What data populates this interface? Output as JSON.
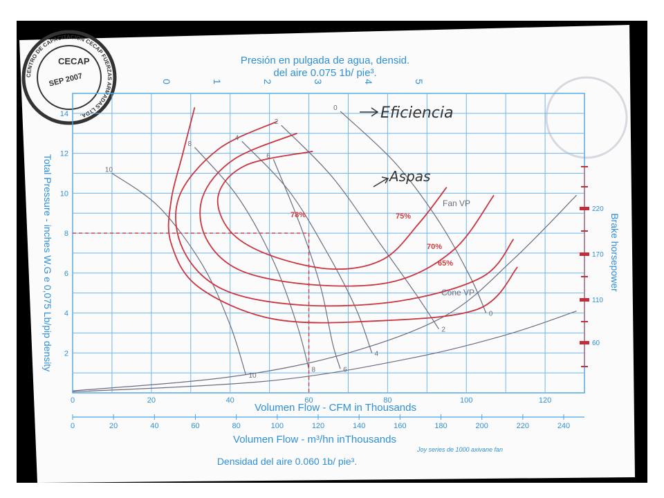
{
  "header": {
    "title_line1": "Presión en pulgada de agua, densid.",
    "title_line2": "del aire 0.075 1b/ pie³."
  },
  "stamp": {
    "text": "CENTRO DE CAPACITACION CECAP FUERZAS ARMADAS LTDA.",
    "org": "CECAP",
    "date": "SEP 2007"
  },
  "annotations": {
    "efficiency": "Eficiencia",
    "blades": "Aspas",
    "pct78": "78%",
    "pct75": "75%",
    "pct70": "70%",
    "pct65": "65%",
    "fan_vp": "Fan VP",
    "cone_vp": "Cone VP"
  },
  "axes": {
    "y_label": "Total Pressure - inches W.G e 0,075 Lb/pip  density",
    "right_label": "Brake horsepower",
    "x_label_cfm": "Volumen Flow - CFM in Thousands",
    "x_label_m3": "Volumen Flow - m³/hn inThousands",
    "density_note": "Densidad del aire 0.060 1b/ pie³.",
    "footer_note": "Joy series  de 1000 axivane fan"
  },
  "chart_data": {
    "type": "line",
    "xlabel": "Volumen Flow - CFM in Thousands",
    "ylabel": "Total Pressure - inches W.G e 0,075 Lb/pip  density",
    "xlim": [
      0,
      130
    ],
    "ylim": [
      0,
      15
    ],
    "grid": true,
    "x_ticks": [
      "0",
      "20",
      "40",
      "60",
      "80",
      "100",
      "120"
    ],
    "y_ticks": [
      "2",
      "4",
      "6",
      "8",
      "10",
      "12",
      "14"
    ],
    "x2_ticks": [
      "0",
      "20",
      "40",
      "60",
      "80",
      "100",
      "120",
      "140",
      "160",
      "180",
      "200",
      "220",
      "240"
    ],
    "top_ticks": [
      "0",
      "1",
      "2",
      "3",
      "4",
      "5"
    ],
    "bhp_ticks": [
      "60",
      "110",
      "170",
      "220"
    ],
    "operating_point": {
      "x": 60,
      "y": 8
    },
    "blade_lines": [
      {
        "name": "10",
        "points": [
          [
            10,
            11
          ],
          [
            22,
            9.3
          ],
          [
            33,
            6.4
          ],
          [
            40,
            3.4
          ],
          [
            44,
            0.9
          ]
        ]
      },
      {
        "name": "8",
        "points": [
          [
            31,
            12.3
          ],
          [
            42,
            9.8
          ],
          [
            51,
            6.6
          ],
          [
            57,
            3.4
          ],
          [
            60,
            1.2
          ]
        ]
      },
      {
        "name": "6",
        "points": [
          [
            51,
            11.7
          ],
          [
            58,
            8.3
          ],
          [
            63,
            5.3
          ],
          [
            66,
            2.5
          ],
          [
            68,
            1.2
          ]
        ]
      },
      {
        "name": "4",
        "points": [
          [
            43,
            12.6
          ],
          [
            55,
            10.1
          ],
          [
            65,
            6.9
          ],
          [
            72,
            4.2
          ],
          [
            76,
            2
          ]
        ]
      },
      {
        "name": "2",
        "points": [
          [
            53,
            13.4
          ],
          [
            66,
            10.8
          ],
          [
            78,
            7.5
          ],
          [
            87,
            5
          ],
          [
            93,
            3.2
          ]
        ]
      },
      {
        "name": "0",
        "points": [
          [
            68,
            14.1
          ],
          [
            82,
            11.5
          ],
          [
            93,
            8.6
          ],
          [
            101,
            5.8
          ],
          [
            105,
            4
          ]
        ]
      }
    ],
    "efficiency_curves": [
      {
        "name": "78%",
        "points": [
          [
            61,
            12.1
          ],
          [
            44,
            11.4
          ],
          [
            37,
            9.9
          ],
          [
            40,
            8.1
          ],
          [
            50,
            6.9
          ],
          [
            66,
            6.2
          ],
          [
            79,
            6.7
          ],
          [
            88,
            8.5
          ],
          [
            95,
            10.3
          ]
        ]
      },
      {
        "name": "75%",
        "points": [
          [
            57,
            13
          ],
          [
            41,
            11.7
          ],
          [
            33,
            9.8
          ],
          [
            34,
            7.7
          ],
          [
            43,
            6.1
          ],
          [
            62,
            5.4
          ],
          [
            82,
            5.6
          ],
          [
            97,
            7.2
          ],
          [
            107,
            9.9
          ]
        ]
      },
      {
        "name": "70%",
        "points": [
          [
            52,
            13.6
          ],
          [
            37,
            12.2
          ],
          [
            27,
            9.8
          ],
          [
            28,
            7.2
          ],
          [
            38,
            5.2
          ],
          [
            58,
            4.4
          ],
          [
            83,
            4.6
          ],
          [
            104,
            5.8
          ],
          [
            112,
            7.7
          ]
        ]
      },
      {
        "name": "65%",
        "points": [
          [
            31,
            14.3
          ],
          [
            28,
            12
          ],
          [
            25,
            9.6
          ],
          [
            25,
            7.5
          ],
          [
            32,
            5.3
          ],
          [
            51,
            3.7
          ],
          [
            77,
            3.6
          ],
          [
            103,
            4.2
          ],
          [
            113,
            6.3
          ]
        ]
      }
    ],
    "vp_curves": [
      {
        "name": "Fan VP",
        "points": [
          [
            0,
            0.1
          ],
          [
            40,
            0.8
          ],
          [
            70,
            2
          ],
          [
            95,
            3.9
          ],
          [
            112,
            6.7
          ],
          [
            128,
            9.9
          ]
        ]
      },
      {
        "name": "Cone VP",
        "points": [
          [
            0,
            0.05
          ],
          [
            50,
            0.6
          ],
          [
            85,
            1.7
          ],
          [
            110,
            2.9
          ],
          [
            128,
            4.1
          ]
        ]
      }
    ],
    "efficiency_label_points": {
      "top": [
        53,
        14.3
      ],
      "bottom": [
        58,
        13.5
      ]
    }
  }
}
